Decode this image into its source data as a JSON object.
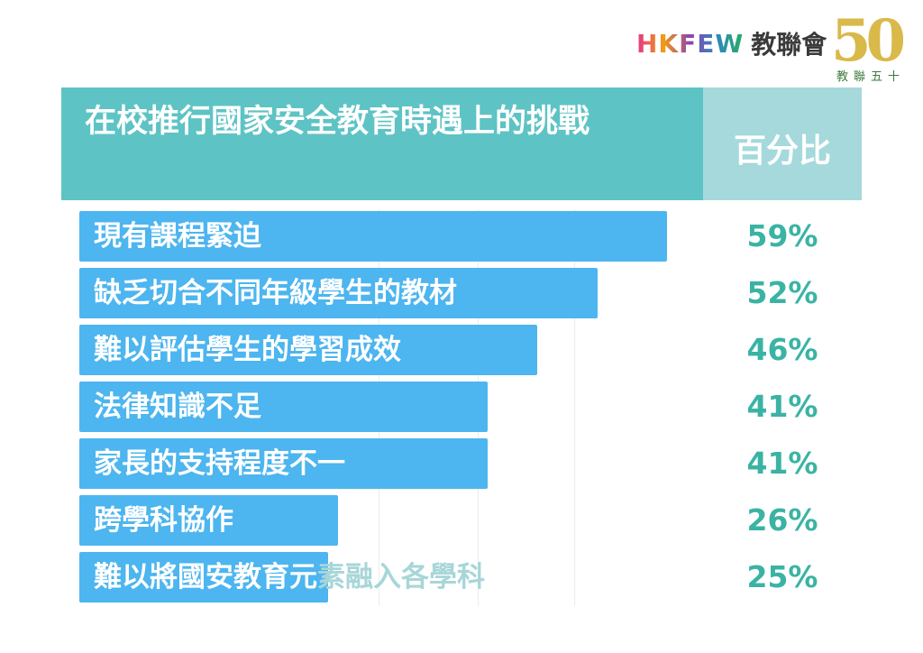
{
  "logo": {
    "brand_en": "HKFEW",
    "brand_zh": "教聯會",
    "anniversary_number": "50",
    "anniversary_text": "教聯五十"
  },
  "header": {
    "title": "在校推行國家安全教育時遇上的挑戰",
    "percent_label": "百分比"
  },
  "colors": {
    "header_bg": "#5ec3c4",
    "header_right_bg": "#a5d9dc",
    "bar": "#4db5ef",
    "percent_text": "#3bb3a4"
  },
  "chart_data": {
    "type": "bar",
    "orientation": "horizontal",
    "categories": [
      "現有課程緊迫",
      "缺乏切合不同年級學生的教材",
      "難以評估學生的學習成效",
      "法律知識不足",
      "家長的支持程度不一",
      "跨學科協作",
      "難以將國安教育元素融入各學科"
    ],
    "values": [
      59,
      52,
      46,
      41,
      41,
      26,
      25
    ],
    "value_labels": [
      "59%",
      "52%",
      "46%",
      "41%",
      "41%",
      "26%",
      "25%"
    ],
    "unit": "%",
    "xlim": [
      0,
      100
    ],
    "grid": true
  }
}
